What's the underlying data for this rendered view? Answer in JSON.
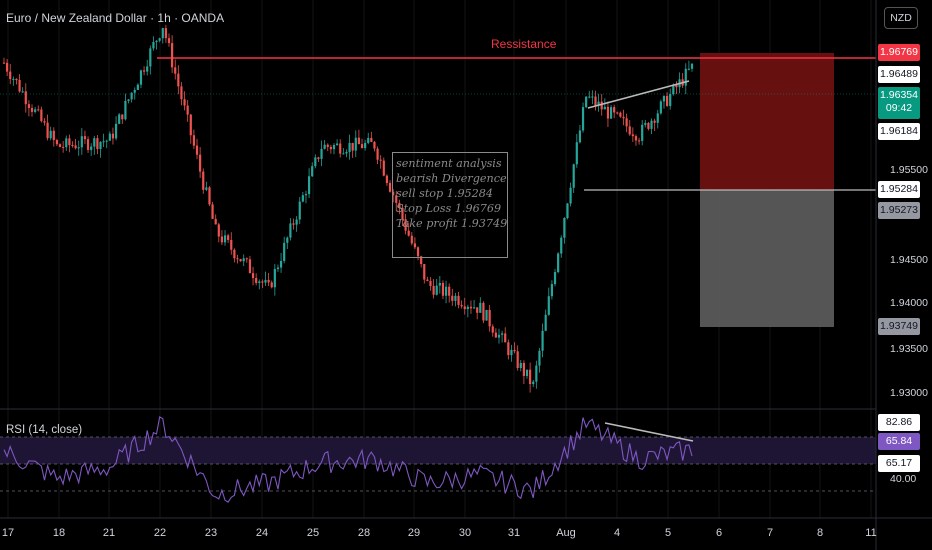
{
  "header": {
    "title": "Euro / New Zealand Dollar · 1h · OANDA",
    "currency_button": "NZD"
  },
  "annotations": {
    "resistance_label": "Ressistance",
    "note_lines": [
      "sentiment analysis",
      "bearish Divergence",
      "sell stop 1.95284",
      "Stop Loss 1.96769",
      "Take profit 1.93749"
    ]
  },
  "price_axis": {
    "labels": [
      "1.95500",
      "1.94500",
      "1.94000",
      "1.93500",
      "1.93000"
    ],
    "tags": {
      "resistance": "1.96769",
      "high": "1.96489",
      "current_price": "1.96354",
      "countdown": "09:42",
      "low_tag": "1.96184",
      "sell_stop": "1.95284",
      "sell_stop_2": "1.95273",
      "take_profit": "1.93749"
    }
  },
  "rsi_panel": {
    "title": "RSI (14, close)",
    "labels": [
      "82.86",
      "65.84",
      "65.17",
      "40.00"
    ]
  },
  "time_axis": {
    "labels": [
      "17",
      "18",
      "21",
      "22",
      "23",
      "24",
      "25",
      "28",
      "29",
      "30",
      "31",
      "Aug",
      "4",
      "5",
      "6",
      "7",
      "8",
      "11"
    ]
  },
  "colors": {
    "bull": "#26a69a",
    "bear": "#ef5350",
    "resistance": "#f23645",
    "stop_zone": "#6b1111",
    "profit_zone": "#5a5a5a",
    "rsi_line": "#7e57c2",
    "rsi_band": "#1e1433"
  },
  "chart_data": [
    {
      "type": "line",
      "title": "Euro / New Zealand Dollar · 1h · OANDA",
      "x": [
        "17",
        "18",
        "21",
        "22",
        "23",
        "24",
        "25",
        "28",
        "29",
        "30",
        "31",
        "Aug",
        "4",
        "5"
      ],
      "series": [
        {
          "values": [
            1.9635,
            1.9548,
            1.9555,
            1.9674,
            1.946,
            1.94,
            1.9548,
            1.955,
            1.9405,
            1.938,
            1.93,
            1.96,
            1.956,
            1.963
          ]
        }
      ],
      "ylim": [
        1.928,
        1.97
      ],
      "levels": {
        "resistance": 1.96769,
        "sell_stop": 1.95284,
        "stop_loss": 1.96769,
        "take_profit": 1.93749
      }
    },
    {
      "type": "line",
      "title": "RSI (14, close)",
      "x": [
        "17",
        "18",
        "21",
        "22",
        "23",
        "24",
        "25",
        "28",
        "29",
        "30",
        "31",
        "Aug",
        "4",
        "5"
      ],
      "series": [
        {
          "values": [
            65,
            48,
            55,
            82,
            38,
            45,
            58,
            60,
            45,
            50,
            40,
            82,
            60,
            66
          ]
        }
      ],
      "ylim": [
        0,
        100
      ],
      "levels": [
        82.86,
        65.84,
        65.17,
        40.0
      ]
    }
  ]
}
